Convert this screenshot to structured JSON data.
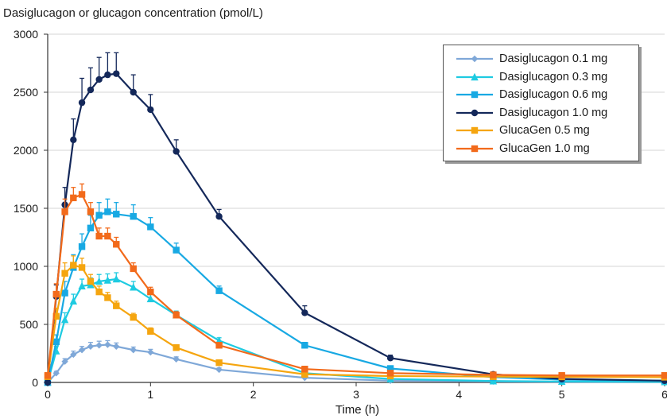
{
  "chart_data": {
    "type": "line",
    "ylabel": "Dasiglucagon or glucagon concentration (pmol/L)",
    "xlabel": "Time (h)",
    "xlim": [
      0,
      6
    ],
    "ylim": [
      0,
      3000
    ],
    "xticks": [
      "0",
      "1",
      "2",
      "3",
      "4",
      "5",
      "6"
    ],
    "yticks": [
      "0",
      "500",
      "1000",
      "1500",
      "2000",
      "2500",
      "3000"
    ],
    "grid": "horizontal",
    "legend_position": "top-right",
    "series": [
      {
        "name": "Dasiglucagon 0.1 mg",
        "color": "#7fa8d8",
        "marker": "diamond",
        "x": [
          0,
          0.083,
          0.167,
          0.25,
          0.333,
          0.417,
          0.5,
          0.583,
          0.667,
          0.833,
          1.0,
          1.25,
          1.667,
          2.5,
          3.333,
          4.333,
          5.0,
          6.0
        ],
        "y": [
          0,
          80,
          180,
          240,
          280,
          310,
          320,
          325,
          310,
          280,
          260,
          200,
          110,
          40,
          15,
          8,
          5,
          3
        ],
        "err": [
          0,
          15,
          25,
          30,
          30,
          35,
          35,
          35,
          30,
          25,
          25,
          20,
          15,
          8,
          5,
          3,
          2,
          2
        ]
      },
      {
        "name": "Dasiglucagon 0.3 mg",
        "color": "#1ecbe1",
        "marker": "triangle",
        "x": [
          0,
          0.083,
          0.167,
          0.25,
          0.333,
          0.417,
          0.5,
          0.583,
          0.667,
          0.833,
          1.0,
          1.25,
          1.667,
          2.5,
          3.333,
          4.333,
          5.0,
          6.0
        ],
        "y": [
          0,
          270,
          540,
          700,
          830,
          840,
          870,
          880,
          890,
          820,
          720,
          580,
          360,
          80,
          30,
          12,
          8,
          5
        ],
        "err": [
          0,
          40,
          60,
          60,
          60,
          60,
          60,
          55,
          55,
          50,
          45,
          35,
          25,
          10,
          5,
          3,
          2,
          2
        ]
      },
      {
        "name": "Dasiglucagon 0.6 mg",
        "color": "#18a9e3",
        "marker": "square",
        "x": [
          0,
          0.083,
          0.167,
          0.25,
          0.333,
          0.417,
          0.5,
          0.583,
          0.667,
          0.833,
          1.0,
          1.25,
          1.667,
          2.5,
          3.333,
          4.333,
          5.0,
          6.0
        ],
        "y": [
          0,
          350,
          770,
          990,
          1170,
          1330,
          1440,
          1470,
          1450,
          1430,
          1340,
          1140,
          790,
          320,
          120,
          45,
          25,
          15
        ],
        "err": [
          0,
          60,
          100,
          110,
          110,
          110,
          110,
          110,
          100,
          100,
          80,
          60,
          40,
          25,
          10,
          5,
          3,
          3
        ]
      },
      {
        "name": "Dasiglucagon 1.0 mg",
        "color": "#14285a",
        "marker": "circle",
        "x": [
          0,
          0.083,
          0.167,
          0.25,
          0.333,
          0.417,
          0.5,
          0.583,
          0.667,
          0.833,
          1.0,
          1.25,
          1.667,
          2.5,
          3.333,
          4.333,
          5.0,
          6.0
        ],
        "y": [
          0,
          740,
          1530,
          2090,
          2410,
          2520,
          2610,
          2650,
          2660,
          2500,
          2350,
          1990,
          1430,
          600,
          210,
          70,
          30,
          15
        ],
        "err": [
          0,
          100,
          150,
          180,
          210,
          190,
          190,
          190,
          180,
          150,
          130,
          100,
          60,
          60,
          25,
          10,
          5,
          3
        ]
      },
      {
        "name": "GlucaGen 0.5 mg",
        "color": "#f5a50f",
        "marker": "square",
        "x": [
          0,
          0.083,
          0.167,
          0.25,
          0.333,
          0.417,
          0.5,
          0.583,
          0.667,
          0.833,
          1.0,
          1.25,
          1.667,
          2.5,
          3.333,
          4.333,
          5.0,
          6.0
        ],
        "y": [
          50,
          570,
          940,
          1010,
          990,
          870,
          780,
          730,
          660,
          560,
          440,
          300,
          170,
          70,
          55,
          50,
          48,
          45
        ],
        "err": [
          0,
          70,
          90,
          80,
          80,
          60,
          50,
          45,
          40,
          35,
          30,
          25,
          15,
          10,
          5,
          5,
          5,
          5
        ]
      },
      {
        "name": "GlucaGen 1.0 mg",
        "color": "#f26a1b",
        "marker": "square",
        "x": [
          0,
          0.083,
          0.167,
          0.25,
          0.333,
          0.417,
          0.5,
          0.583,
          0.667,
          0.833,
          1.0,
          1.25,
          1.667,
          2.5,
          3.333,
          4.333,
          5.0,
          6.0
        ],
        "y": [
          60,
          760,
          1470,
          1590,
          1620,
          1470,
          1260,
          1260,
          1190,
          980,
          780,
          580,
          320,
          115,
          80,
          65,
          60,
          60
        ],
        "err": [
          0,
          90,
          110,
          90,
          90,
          80,
          70,
          70,
          60,
          50,
          40,
          30,
          20,
          10,
          8,
          5,
          5,
          5
        ]
      }
    ]
  }
}
